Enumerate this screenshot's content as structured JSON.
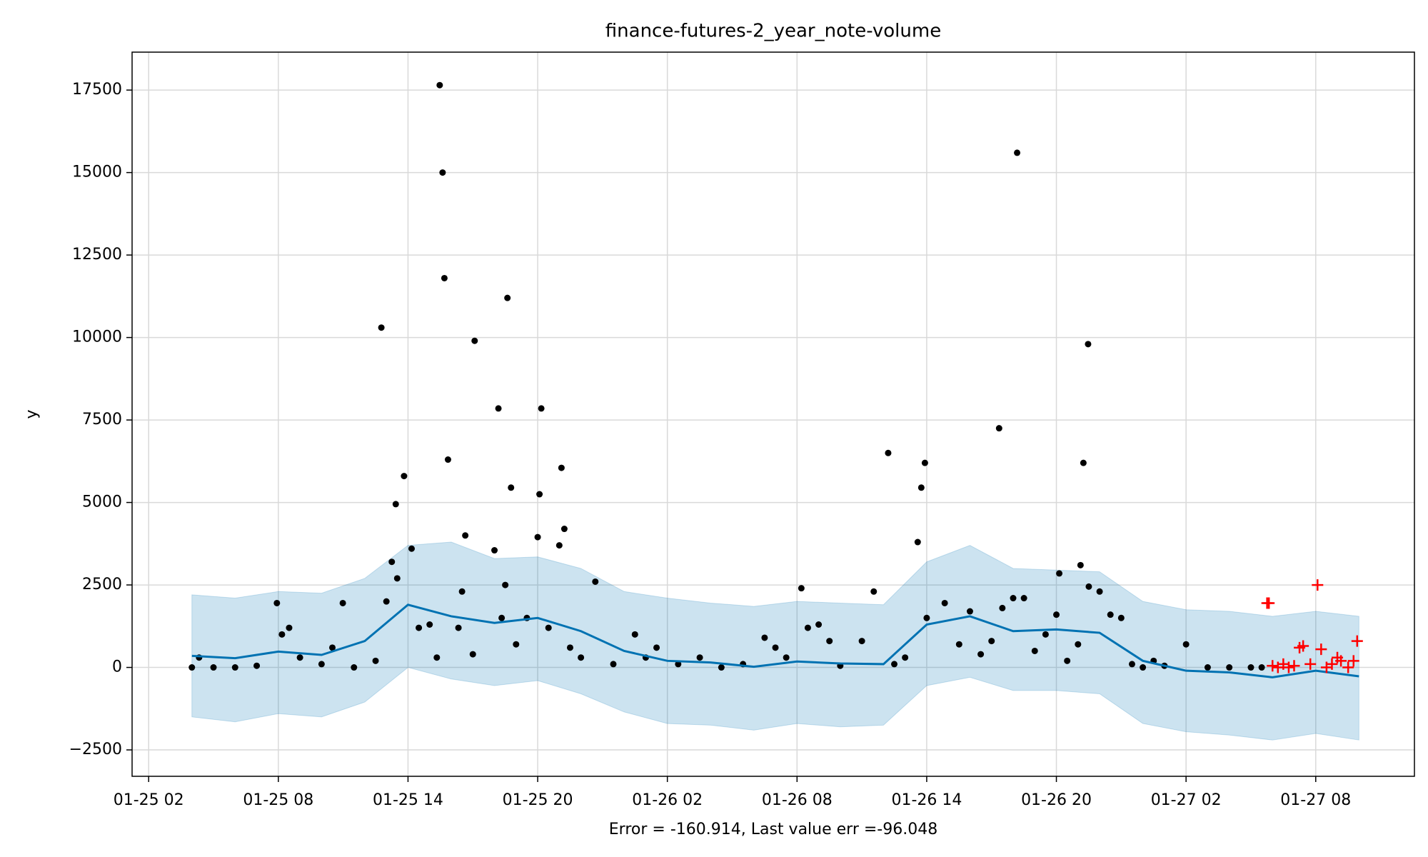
{
  "chart_data": {
    "type": "line",
    "title": "finance-futures-2_year_note-volume",
    "xlabel": "Error = -160.914, Last value err =-96.048",
    "ylabel": "y",
    "xlim": [
      "01-25 01:14",
      "01-27 12:34"
    ],
    "ylim": [
      -3300,
      18650
    ],
    "xticks": [
      "01-25 02",
      "01-25 08",
      "01-25 14",
      "01-25 20",
      "01-26 02",
      "01-26 08",
      "01-26 14",
      "01-26 20",
      "01-27 02",
      "01-27 08"
    ],
    "yticks": [
      {
        "value": -2500,
        "label": "−2500"
      },
      0,
      2500,
      5000,
      7500,
      10000,
      12500,
      15000,
      17500
    ],
    "grid": true,
    "forecast": {
      "color": "#0072B2",
      "band_color": "#0072B2",
      "x": [
        "01-25 04:00",
        "01-25 06:00",
        "01-25 08:00",
        "01-25 10:00",
        "01-25 12:00",
        "01-25 14:00",
        "01-25 16:00",
        "01-25 18:00",
        "01-25 20:00",
        "01-25 22:00",
        "01-26 00:00",
        "01-26 02:00",
        "01-26 04:00",
        "01-26 06:00",
        "01-26 08:00",
        "01-26 10:00",
        "01-26 12:00",
        "01-26 14:00",
        "01-26 16:00",
        "01-26 18:00",
        "01-26 20:00",
        "01-26 22:00",
        "01-27 00:00",
        "01-27 02:00",
        "01-27 04:00",
        "01-27 06:00",
        "01-27 08:00",
        "01-27 10:00"
      ],
      "values": [
        350,
        280,
        480,
        380,
        800,
        1900,
        1550,
        1350,
        1500,
        1100,
        500,
        200,
        150,
        20,
        180,
        120,
        100,
        1300,
        1550,
        1100,
        1150,
        1050,
        200,
        -100,
        -150,
        -300,
        -100,
        -270
      ],
      "upper": [
        2200,
        2100,
        2300,
        2250,
        2700,
        3700,
        3800,
        3300,
        3350,
        3000,
        2300,
        2100,
        1950,
        1850,
        2000,
        1950,
        1900,
        3200,
        3700,
        3000,
        2950,
        2900,
        2000,
        1750,
        1700,
        1550,
        1700,
        1550
      ],
      "lower": [
        -1500,
        -1650,
        -1400,
        -1500,
        -1050,
        0,
        -350,
        -550,
        -400,
        -800,
        -1350,
        -1700,
        -1750,
        -1900,
        -1700,
        -1800,
        -1750,
        -550,
        -300,
        -700,
        -700,
        -800,
        -1700,
        -1950,
        -2050,
        -2200,
        -2000,
        -2200
      ]
    },
    "observed": {
      "color": "#000000",
      "x": [
        "01-25 12:46",
        "01-25 15:28",
        "01-25 15:36",
        "01-25 15:41",
        "01-25 18:36",
        "01-25 17:05",
        "01-25 18:11",
        "01-25 20:10",
        "01-25 21:06",
        "01-25 15:51",
        "01-25 13:49",
        "01-25 13:26",
        "01-25 18:46",
        "01-25 20:05",
        "01-25 16:39",
        "01-25 21:14",
        "01-26 12:13",
        "01-26 13:55",
        "01-26 13:45",
        "01-26 13:35",
        "01-26 17:21",
        "01-26 18:11",
        "01-26 21:28",
        "01-26 21:15",
        "01-26 21:07",
        "01-26 20:08",
        "01-26 08:12",
        "01-26 11:33",
        "01-25 07:56",
        "01-25 10:59",
        "01-25 22:40",
        "01-25 04:00",
        "01-25 04:20",
        "01-25 05:00",
        "01-25 06:00",
        "01-25 07:00",
        "01-25 08:10",
        "01-25 08:30",
        "01-25 09:00",
        "01-25 10:00",
        "01-25 10:30",
        "01-25 11:30",
        "01-25 12:30",
        "01-25 13:00",
        "01-25 13:15",
        "01-25 13:30",
        "01-25 14:10",
        "01-25 14:30",
        "01-25 15:00",
        "01-25 15:20",
        "01-25 16:20",
        "01-25 16:30",
        "01-25 17:00",
        "01-25 18:00",
        "01-25 18:20",
        "01-25 18:30",
        "01-25 19:00",
        "01-25 19:30",
        "01-25 20:00",
        "01-25 20:30",
        "01-25 21:00",
        "01-25 21:30",
        "01-25 22:00",
        "01-25 23:30",
        "01-26 00:30",
        "01-26 01:00",
        "01-26 01:30",
        "01-26 02:30",
        "01-26 03:30",
        "01-26 04:30",
        "01-26 05:30",
        "01-26 06:30",
        "01-26 07:00",
        "01-26 07:30",
        "01-26 08:30",
        "01-26 09:00",
        "01-26 09:30",
        "01-26 10:00",
        "01-26 11:00",
        "01-26 12:30",
        "01-26 13:00",
        "01-26 14:00",
        "01-26 14:50",
        "01-26 15:30",
        "01-26 16:00",
        "01-26 16:30",
        "01-26 17:00",
        "01-26 17:30",
        "01-26 18:00",
        "01-26 18:30",
        "01-26 19:00",
        "01-26 19:30",
        "01-26 20:00",
        "01-26 20:30",
        "01-26 21:00",
        "01-26 21:30",
        "01-26 22:00",
        "01-26 22:30",
        "01-26 23:00",
        "01-26 23:30",
        "01-27 00:00",
        "01-27 00:30",
        "01-27 01:00",
        "01-27 02:00",
        "01-27 03:00",
        "01-27 04:00",
        "01-27 05:00",
        "01-27 05:30"
      ],
      "values": [
        10300,
        17650,
        15000,
        11800,
        11200,
        9900,
        7850,
        7850,
        6050,
        6300,
        5800,
        4950,
        5450,
        5250,
        4000,
        4200,
        6500,
        6200,
        5450,
        3800,
        7250,
        15600,
        9800,
        6200,
        3100,
        2850,
        2400,
        2300,
        1950,
        1950,
        2600,
        0,
        300,
        0,
        0,
        50,
        1000,
        1200,
        300,
        100,
        600,
        0,
        200,
        2000,
        3200,
        2700,
        3600,
        1200,
        1300,
        300,
        1200,
        2300,
        400,
        3550,
        1500,
        2500,
        700,
        1500,
        3950,
        1200,
        3700,
        600,
        300,
        100,
        1000,
        300,
        600,
        100,
        300,
        0,
        100,
        900,
        600,
        300,
        1200,
        1300,
        800,
        50,
        800,
        100,
        300,
        1500,
        1950,
        700,
        1700,
        400,
        800,
        1800,
        2100,
        2100,
        500,
        1000,
        1600,
        200,
        700,
        2450,
        2300,
        1600,
        1500,
        100,
        0,
        200,
        50,
        700,
        0,
        0,
        0,
        0
      ]
    },
    "future": {
      "color": "#ff0000",
      "x": [
        "01-27 05:45",
        "01-27 05:50",
        "01-27 06:00",
        "01-27 06:15",
        "01-27 06:30",
        "01-27 06:45",
        "01-27 07:00",
        "01-27 07:15",
        "01-27 07:25",
        "01-27 07:45",
        "01-27 08:05",
        "01-27 08:15",
        "01-27 08:30",
        "01-27 08:45",
        "01-27 09:00",
        "01-27 09:10",
        "01-27 09:30",
        "01-27 09:45",
        "01-27 09:55"
      ],
      "values": [
        1950,
        1950,
        50,
        0,
        100,
        0,
        50,
        600,
        650,
        100,
        2500,
        550,
        0,
        100,
        300,
        200,
        0,
        200,
        800
      ]
    }
  }
}
